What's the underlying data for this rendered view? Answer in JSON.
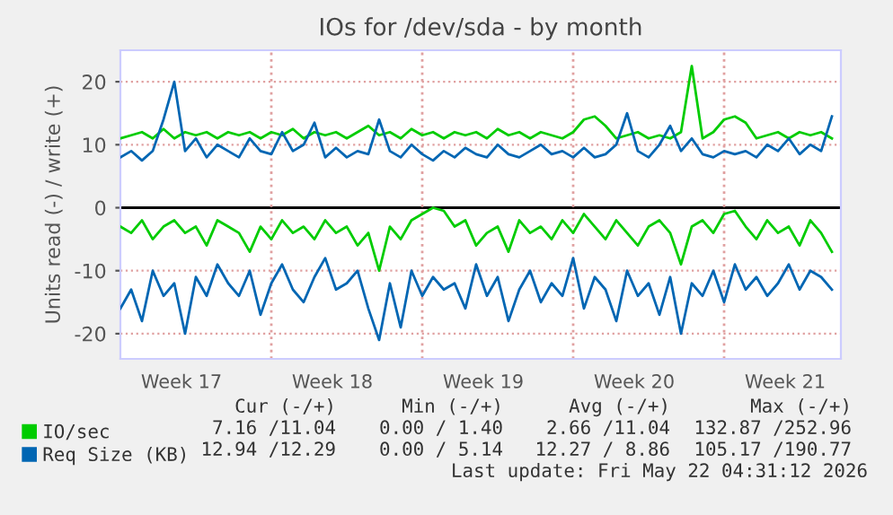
{
  "chart_data": {
    "type": "line",
    "title": "IOs for /dev/sda - by month",
    "ylabel": "Units read (-) / write (+)",
    "x": [
      "2026-04-20T00:00",
      "2026-04-20T12:00",
      "2026-04-21T00:00",
      "2026-04-21T12:00",
      "2026-04-22T00:00",
      "2026-04-22T12:00",
      "2026-04-23T00:00",
      "2026-04-23T12:00",
      "2026-04-24T00:00",
      "2026-04-24T12:00",
      "2026-04-25T00:00",
      "2026-04-25T12:00",
      "2026-04-26T00:00",
      "2026-04-26T12:00",
      "2026-04-27T00:00",
      "2026-04-27T12:00",
      "2026-04-28T00:00",
      "2026-04-28T12:00",
      "2026-04-29T00:00",
      "2026-04-29T12:00",
      "2026-04-30T00:00",
      "2026-04-30T12:00",
      "2026-05-01T00:00",
      "2026-05-01T12:00",
      "2026-05-02T00:00",
      "2026-05-02T12:00",
      "2026-05-03T00:00",
      "2026-05-03T12:00",
      "2026-05-04T00:00",
      "2026-05-04T12:00",
      "2026-05-05T00:00",
      "2026-05-05T12:00",
      "2026-05-06T00:00",
      "2026-05-06T12:00",
      "2026-05-07T00:00",
      "2026-05-07T12:00",
      "2026-05-08T00:00",
      "2026-05-08T12:00",
      "2026-05-09T00:00",
      "2026-05-09T12:00",
      "2026-05-10T00:00",
      "2026-05-10T12:00",
      "2026-05-11T00:00",
      "2026-05-11T12:00",
      "2026-05-12T00:00",
      "2026-05-12T12:00",
      "2026-05-13T00:00",
      "2026-05-13T12:00",
      "2026-05-14T00:00",
      "2026-05-14T12:00",
      "2026-05-15T00:00",
      "2026-05-15T12:00",
      "2026-05-16T00:00",
      "2026-05-16T12:00",
      "2026-05-17T00:00",
      "2026-05-17T12:00",
      "2026-05-18T00:00",
      "2026-05-18T12:00",
      "2026-05-19T00:00",
      "2026-05-19T12:00",
      "2026-05-20T00:00",
      "2026-05-20T12:00",
      "2026-05-21T00:00",
      "2026-05-21T12:00",
      "2026-05-22T00:00",
      "2026-05-22T12:00",
      "2026-05-23T00:00"
    ],
    "series": [
      {
        "name": "IO/sec",
        "color": "#00cc00",
        "values": [
          11,
          11.5,
          12,
          11,
          12.5,
          11,
          12,
          11.5,
          12,
          11,
          12,
          11.5,
          12,
          11,
          12,
          11.5,
          12.5,
          11,
          12,
          11.5,
          12,
          11,
          12,
          13,
          11.5,
          12,
          11,
          12.5,
          11.5,
          12,
          11,
          12,
          11.5,
          12,
          11,
          12.5,
          11.5,
          12,
          11,
          12,
          11.5,
          11,
          12,
          14,
          14.5,
          13,
          11,
          11.5,
          12,
          11,
          11.5,
          11,
          12,
          22.5,
          11,
          12,
          14,
          14.5,
          13.5,
          11,
          11.5,
          12,
          11,
          12,
          11.5,
          12,
          11
        ]
      },
      {
        "color": "#00cc00",
        "values": [
          -3,
          -4,
          -2,
          -5,
          -3,
          -2,
          -4,
          -3,
          -6,
          -2,
          -3,
          -4,
          -7,
          -3,
          -5,
          -2,
          -4,
          -3,
          -5,
          -2,
          -4,
          -3,
          -6,
          -4,
          -10,
          -3,
          -5,
          -2,
          -1,
          0,
          -0.5,
          -3,
          -2,
          -6,
          -4,
          -3,
          -7,
          -2,
          -4,
          -3,
          -5,
          -2,
          -4,
          -1,
          -3,
          -5,
          -2,
          -4,
          -6,
          -3,
          -2,
          -4,
          -9,
          -3,
          -2,
          -4,
          -1,
          -0.5,
          -3,
          -5,
          -2,
          -4,
          -3,
          -6,
          -2,
          -4,
          -7
        ]
      },
      {
        "name": "Req Size (KB)",
        "color": "#0066b3",
        "values": [
          8,
          9,
          7.5,
          9,
          14,
          20,
          9,
          11,
          8,
          10,
          9,
          8,
          11,
          9,
          8.5,
          12,
          9,
          10,
          13.5,
          8,
          9.5,
          8,
          9,
          8.5,
          14,
          9,
          8,
          10,
          8.5,
          7.5,
          9,
          8,
          9.5,
          8.5,
          8,
          10,
          8.5,
          8,
          9,
          10,
          8.5,
          9,
          8,
          9.5,
          8,
          8.5,
          10,
          15,
          9,
          8,
          10,
          13,
          9,
          11,
          8.5,
          8,
          9,
          8.5,
          9,
          8,
          10,
          9,
          11,
          8.5,
          10,
          9,
          14.5
        ]
      },
      {
        "color": "#0066b3",
        "values": [
          -16,
          -13,
          -18,
          -10,
          -14,
          -12,
          -20,
          -11,
          -14,
          -9,
          -12,
          -14,
          -10,
          -17,
          -12,
          -9,
          -13,
          -15,
          -11,
          -8,
          -13,
          -12,
          -10,
          -16,
          -21,
          -12,
          -19,
          -10,
          -14,
          -11,
          -13,
          -12,
          -16,
          -9,
          -14,
          -11,
          -18,
          -13,
          -10,
          -15,
          -12,
          -14,
          -8,
          -16,
          -11,
          -13,
          -18,
          -10,
          -14,
          -12,
          -17,
          -11,
          -20,
          -12,
          -14,
          -10,
          -15,
          -9,
          -13,
          -11,
          -14,
          -12,
          -9,
          -13,
          -10,
          -11,
          -13
        ]
      }
    ],
    "xlim": [
      "2026-04-20T00:00",
      "2026-05-23T10:00"
    ],
    "ylim": [
      -24,
      25
    ],
    "xticks": [
      {
        "value": "2026-04-22T20:00",
        "label": "Week 17"
      },
      {
        "value": "2026-04-29T20:00",
        "label": "Week 18"
      },
      {
        "value": "2026-05-06T20:00",
        "label": "Week 19"
      },
      {
        "value": "2026-05-13T20:00",
        "label": "Week 20"
      },
      {
        "value": "2026-05-20T20:00",
        "label": "Week 21"
      }
    ],
    "yticks": [
      {
        "value": -20,
        "label": "-20"
      },
      {
        "value": -10,
        "label": "-10"
      },
      0,
      10,
      20
    ],
    "ref_lines": [
      {
        "axis": "y",
        "value": 0,
        "color": "#000000",
        "line_style": "solid"
      },
      {
        "axis": "x",
        "value": "2026-04-27",
        "color": "#e0a0a0",
        "line_style": "dotted"
      },
      {
        "axis": "x",
        "value": "2026-05-04",
        "color": "#e0a0a0",
        "line_style": "dotted"
      },
      {
        "axis": "x",
        "value": "2026-05-11",
        "color": "#e0a0a0",
        "line_style": "dotted"
      },
      {
        "axis": "x",
        "value": "2026-05-18",
        "color": "#e0a0a0",
        "line_style": "dotted"
      }
    ],
    "grid": "y",
    "legend": "bottom left",
    "marker": "none",
    "line_style": "solid",
    "annotations": [
      "Cur (-/+)",
      "Min (-/+)",
      "Avg (-/+)",
      "Max (-/+)",
      "7.16 /11.04",
      "0.00 / 1.40",
      "2.66 /11.04",
      "132.87 /252.96",
      "12.94 /12.29",
      "0.00 / 5.14",
      "12.27 / 8.86",
      "105.17 /190.77",
      "Last update: Fri May 22 04:31:12 2026"
    ]
  }
}
